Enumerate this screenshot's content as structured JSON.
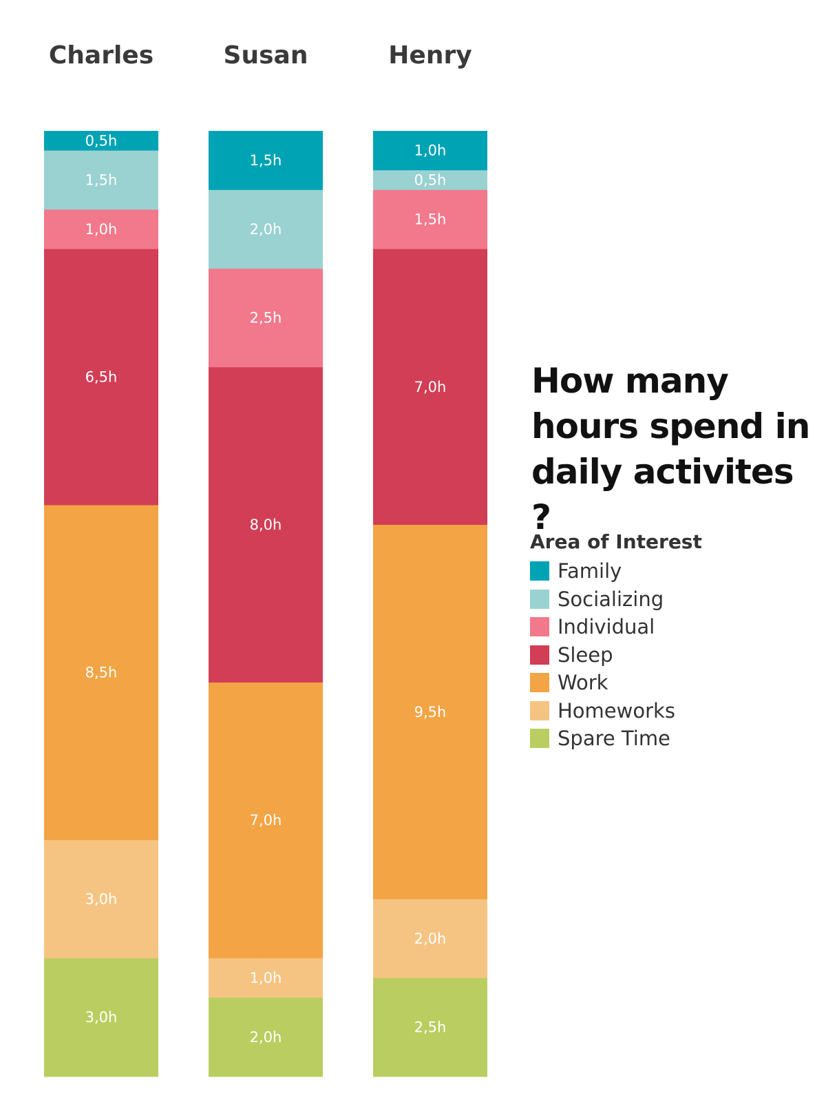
{
  "chart_data": {
    "type": "bar",
    "stacked": true,
    "title": "How many hours spend in daily activites ?",
    "title_lines": [
      "How many",
      "hours spend in",
      "daily activites ?"
    ],
    "categories": [
      "Charles",
      "Susan",
      "Henry"
    ],
    "unit": "h",
    "series": [
      {
        "name": "Family",
        "color": "#00a3b4",
        "values": [
          0.5,
          1.5,
          1.0
        ],
        "labels": [
          "0,5h",
          "1,5h",
          "1,0h"
        ]
      },
      {
        "name": "Socializing",
        "color": "#9ad1d1",
        "values": [
          1.5,
          2.0,
          0.5
        ],
        "labels": [
          "1,5h",
          "2,0h",
          "0,5h"
        ]
      },
      {
        "name": "Individual",
        "color": "#f2788b",
        "values": [
          1.0,
          2.5,
          1.5
        ],
        "labels": [
          "1,0h",
          "2,5h",
          "1,5h"
        ]
      },
      {
        "name": "Sleep",
        "color": "#d13e55",
        "values": [
          6.5,
          8.0,
          7.0
        ],
        "labels": [
          "6,5h",
          "8,0h",
          "7,0h"
        ]
      },
      {
        "name": "Work",
        "color": "#f3a445",
        "values": [
          8.5,
          7.0,
          9.5
        ],
        "labels": [
          "8,5h",
          "7,0h",
          "9,5h"
        ]
      },
      {
        "name": "Homeworks",
        "color": "#f6c482",
        "values": [
          3.0,
          1.0,
          2.0
        ],
        "labels": [
          "3,0h",
          "1,0h",
          "2,0h"
        ]
      },
      {
        "name": "Spare Time",
        "color": "#bacd60",
        "values": [
          3.0,
          2.0,
          2.5
        ],
        "labels": [
          "3,0h",
          "2,0h",
          "2,5h"
        ]
      }
    ],
    "ylim": [
      0,
      24
    ],
    "grid": false,
    "legend": {
      "title": "Area of Interest",
      "placement": "right"
    }
  }
}
